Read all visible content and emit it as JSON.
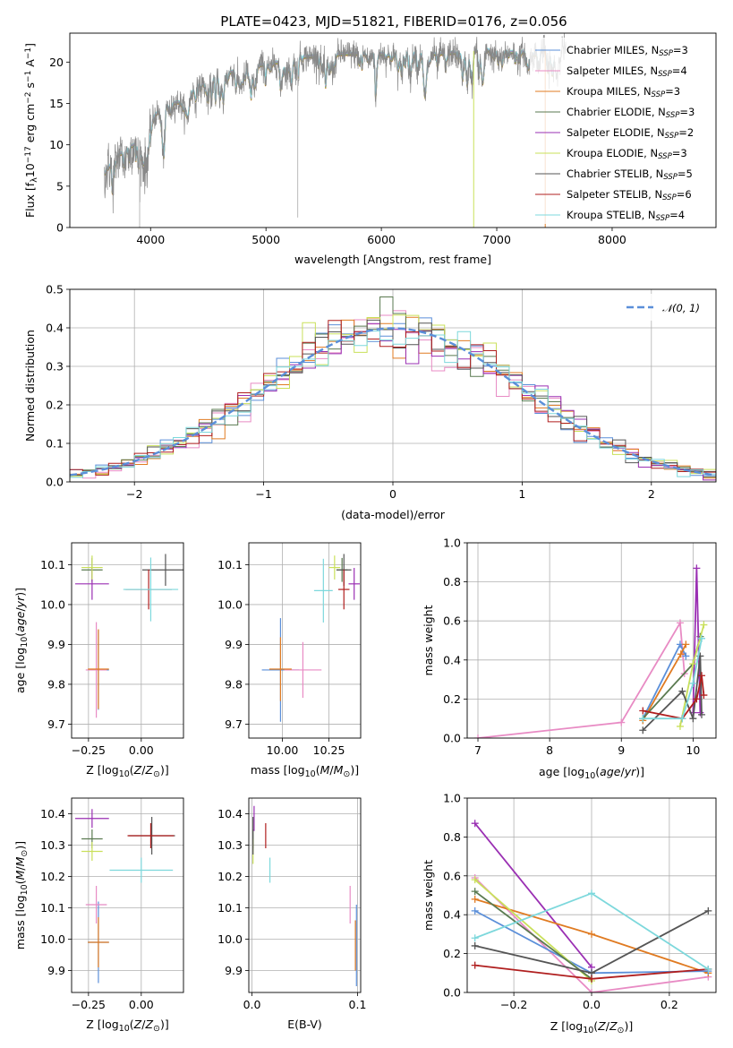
{
  "colors": {
    "chabrier_miles": "#5b8fd9",
    "salpeter_miles": "#e88bc4",
    "kroupa_miles": "#e07b22",
    "chabrier_elodie": "#5a7a50",
    "salpeter_elodie": "#9a2fb3",
    "kroupa_elodie": "#c9e05a",
    "chabrier_stelib": "#555555",
    "salpeter_stelib": "#b01f1f",
    "kroupa_stelib": "#7dd8dc",
    "data": "#888888"
  },
  "chart_data": [
    {
      "id": "spectrum",
      "type": "line",
      "title": "PLATE=0423, MJD=51821, FIBERID=0176, z=0.056",
      "xlabel": "wavelength [Angstrom, rest frame]",
      "ylabel": "Flux [f_λ10^-17 erg cm^-2 s^-1 A^-1]",
      "ylabel_parts": [
        "Flux [f",
        "λ",
        "10",
        "−17",
        " erg cm",
        "−2",
        " s",
        "−1",
        " A",
        "−1",
        "]"
      ],
      "xlim": [
        3300,
        8900
      ],
      "ylim": [
        0,
        23.5
      ],
      "xticks": [
        4000,
        5000,
        6000,
        7000,
        8000
      ],
      "yticks": [
        0,
        5,
        10,
        15,
        20
      ],
      "legend_position": "upper-right",
      "legend": [
        {
          "label": "Chabrier MILES, N",
          "sub": "SSP",
          "tail": "=3",
          "color": "#5b8fd9"
        },
        {
          "label": "Salpeter MILES, N",
          "sub": "SSP",
          "tail": "=4",
          "color": "#e88bc4"
        },
        {
          "label": "Kroupa MILES, N",
          "sub": "SSP",
          "tail": "=3",
          "color": "#e07b22"
        },
        {
          "label": "Chabrier ELODIE, N",
          "sub": "SSP",
          "tail": "=3",
          "color": "#5a7a50"
        },
        {
          "label": "Salpeter ELODIE, N",
          "sub": "SSP",
          "tail": "=2",
          "color": "#9a2fb3"
        },
        {
          "label": "Kroupa ELODIE, N",
          "sub": "SSP",
          "tail": "=3",
          "color": "#c9e05a"
        },
        {
          "label": "Chabrier STELIB, N",
          "sub": "SSP",
          "tail": "=5",
          "color": "#555555"
        },
        {
          "label": "Salpeter STELIB, N",
          "sub": "SSP",
          "tail": "=6",
          "color": "#b01f1f"
        },
        {
          "label": "Kroupa STELIB, N",
          "sub": "SSP",
          "tail": "=4",
          "color": "#7dd8dc"
        }
      ],
      "continuum_x": [
        3600,
        3700,
        3800,
        3900,
        4000,
        4100,
        4200,
        4300,
        4400,
        4500,
        4700,
        4900,
        5100,
        5300,
        5500,
        5700,
        5900,
        6100,
        6300,
        6500,
        6700,
        6900,
        7100,
        7300,
        7500
      ],
      "continuum_y": [
        6.5,
        8.5,
        9.5,
        10.5,
        13.0,
        14.5,
        15.0,
        15.5,
        17.0,
        17.8,
        18.8,
        19.5,
        20.0,
        20.6,
        20.8,
        21.0,
        21.0,
        21.0,
        21.1,
        21.0,
        21.2,
        21.5,
        21.2,
        21.3,
        21.6
      ],
      "dips": [
        {
          "x": 3905,
          "y": 0
        },
        {
          "x": 5275,
          "y": 1.2
        },
        {
          "x": 6800,
          "y": 0
        },
        {
          "x": 7420,
          "y": 0
        }
      ]
    },
    {
      "id": "residual-histogram",
      "type": "histogram",
      "xlabel": "(data-model)/error",
      "ylabel": "Normed distribution",
      "xlim": [
        -2.5,
        2.5
      ],
      "ylim": [
        0,
        0.5
      ],
      "xticks": [
        -2,
        -1,
        0,
        1,
        2
      ],
      "yticks": [
        0.0,
        0.1,
        0.2,
        0.3,
        0.4,
        0.5
      ],
      "bin_width": 0.1,
      "legend": [
        {
          "label": "𝒩(0, 1)",
          "color": "#5b8fd9",
          "style": "dashed"
        }
      ],
      "legend_position": "upper-right"
    },
    {
      "id": "age-vs-Z",
      "type": "errorbar",
      "xlabel": "Z [log10(Z/Z⊙)]",
      "ylabel": "age  [log10(age/yr)]",
      "xlim": [
        -0.33,
        0.2
      ],
      "ylim": [
        9.665,
        10.155
      ],
      "xticks": [
        -0.25,
        0.0
      ],
      "yticks": [
        9.7,
        9.8,
        9.9,
        10.0,
        10.1
      ],
      "points": [
        {
          "x": -0.203,
          "y": 9.836,
          "xerr": 0.05,
          "yerr": 0.1,
          "color": "#5b8fd9"
        },
        {
          "x": -0.213,
          "y": 9.836,
          "xerr": 0.05,
          "yerr": 0.12,
          "color": "#e88bc4"
        },
        {
          "x": -0.203,
          "y": 9.838,
          "xerr": 0.05,
          "yerr": 0.1,
          "color": "#e07b22"
        },
        {
          "x": -0.233,
          "y": 10.087,
          "xerr": 0.05,
          "yerr": 0.03,
          "color": "#5a7a50"
        },
        {
          "x": -0.233,
          "y": 10.052,
          "xerr": 0.08,
          "yerr": 0.04,
          "color": "#9a2fb3"
        },
        {
          "x": -0.233,
          "y": 10.093,
          "xerr": 0.05,
          "yerr": 0.03,
          "color": "#c9e05a"
        },
        {
          "x": 0.115,
          "y": 10.087,
          "xerr": 0.11,
          "yerr": 0.04,
          "color": "#555555"
        },
        {
          "x": 0.035,
          "y": 10.038,
          "xerr": 0.11,
          "yerr": 0.05,
          "color": "#b01f1f"
        },
        {
          "x": 0.045,
          "y": 10.038,
          "xerr": 0.13,
          "yerr": 0.08,
          "color": "#7dd8dc"
        }
      ]
    },
    {
      "id": "age-vs-mass",
      "type": "errorbar",
      "xlabel": "mass [log10(M/M⊙)]",
      "xlim": [
        9.82,
        10.42
      ],
      "ylim": [
        9.665,
        10.155
      ],
      "xticks": [
        10.0,
        10.25
      ],
      "yticks": [
        9.7,
        9.8,
        9.9,
        10.0,
        10.1
      ],
      "points": [
        {
          "x": 9.99,
          "y": 9.836,
          "xerr": 0.1,
          "yerr": 0.13,
          "color": "#5b8fd9"
        },
        {
          "x": 10.11,
          "y": 9.836,
          "xerr": 0.1,
          "yerr": 0.07,
          "color": "#e88bc4"
        },
        {
          "x": 9.99,
          "y": 9.838,
          "xerr": 0.06,
          "yerr": 0.08,
          "color": "#e07b22"
        },
        {
          "x": 10.32,
          "y": 10.087,
          "xerr": 0.03,
          "yerr": 0.03,
          "color": "#5a7a50"
        },
        {
          "x": 10.385,
          "y": 10.052,
          "xerr": 0.03,
          "yerr": 0.04,
          "color": "#9a2fb3"
        },
        {
          "x": 10.28,
          "y": 10.093,
          "xerr": 0.03,
          "yerr": 0.03,
          "color": "#c9e05a"
        },
        {
          "x": 10.33,
          "y": 10.087,
          "xerr": 0.04,
          "yerr": 0.04,
          "color": "#555555"
        },
        {
          "x": 10.33,
          "y": 10.038,
          "xerr": 0.03,
          "yerr": 0.05,
          "color": "#b01f1f"
        },
        {
          "x": 10.22,
          "y": 10.035,
          "xerr": 0.05,
          "yerr": 0.08,
          "color": "#7dd8dc"
        }
      ]
    },
    {
      "id": "mass-weight-vs-age",
      "type": "line",
      "xlabel": "age  [log10(age/yr)]",
      "ylabel": "mass weight",
      "xlim": [
        6.85,
        10.32
      ],
      "ylim": [
        0,
        1
      ],
      "xticks": [
        7,
        8,
        9,
        10
      ],
      "yticks": [
        0.0,
        0.2,
        0.4,
        0.6,
        0.8,
        1.0
      ],
      "series": [
        {
          "color": "#e88bc4",
          "x": [
            7.0,
            9.0,
            9.82,
            9.88
          ],
          "y": [
            0.0,
            0.08,
            0.59,
            0.33
          ]
        },
        {
          "color": "#5b8fd9",
          "x": [
            9.3,
            9.82,
            9.9
          ],
          "y": [
            0.1,
            0.48,
            0.42
          ]
        },
        {
          "color": "#e07b22",
          "x": [
            9.3,
            9.83,
            9.9
          ],
          "y": [
            0.09,
            0.43,
            0.48
          ]
        },
        {
          "color": "#5a7a50",
          "x": [
            9.3,
            10.0,
            10.1
          ],
          "y": [
            0.1,
            0.38,
            0.52
          ]
        },
        {
          "color": "#9a2fb3",
          "x": [
            10.0,
            10.05,
            10.1
          ],
          "y": [
            0.13,
            0.87,
            0.13
          ]
        },
        {
          "color": "#c9e05a",
          "x": [
            9.82,
            10.0,
            10.15
          ],
          "y": [
            0.06,
            0.38,
            0.58
          ]
        },
        {
          "color": "#555555",
          "x": [
            9.3,
            9.85,
            10.0,
            10.1,
            10.12
          ],
          "y": [
            0.04,
            0.24,
            0.1,
            0.42,
            0.12
          ]
        },
        {
          "color": "#b01f1f",
          "x": [
            9.3,
            9.85,
            10.05,
            10.12,
            10.15
          ],
          "y": [
            0.14,
            0.1,
            0.2,
            0.32,
            0.22
          ]
        },
        {
          "color": "#7dd8dc",
          "x": [
            9.3,
            9.85,
            10.0,
            10.12
          ],
          "y": [
            0.1,
            0.1,
            0.28,
            0.51
          ]
        }
      ]
    },
    {
      "id": "mass-vs-Z",
      "type": "errorbar",
      "xlabel": "Z [log10(Z/Z⊙)]",
      "ylabel": "mass [log10(M/M⊙)]",
      "xlim": [
        -0.33,
        0.2
      ],
      "ylim": [
        9.83,
        10.45
      ],
      "xticks": [
        -0.25,
        0.0
      ],
      "yticks": [
        9.9,
        10.0,
        10.1,
        10.2,
        10.3,
        10.4
      ],
      "points": [
        {
          "x": -0.203,
          "y": 9.99,
          "xerr": 0.05,
          "yerr": 0.13,
          "color": "#5b8fd9"
        },
        {
          "x": -0.213,
          "y": 10.11,
          "xerr": 0.05,
          "yerr": 0.06,
          "color": "#e88bc4"
        },
        {
          "x": -0.203,
          "y": 9.99,
          "xerr": 0.05,
          "yerr": 0.08,
          "color": "#e07b22"
        },
        {
          "x": -0.233,
          "y": 10.32,
          "xerr": 0.05,
          "yerr": 0.03,
          "color": "#5a7a50"
        },
        {
          "x": -0.233,
          "y": 10.385,
          "xerr": 0.08,
          "yerr": 0.03,
          "color": "#9a2fb3"
        },
        {
          "x": -0.233,
          "y": 10.28,
          "xerr": 0.05,
          "yerr": 0.03,
          "color": "#c9e05a"
        },
        {
          "x": 0.05,
          "y": 10.33,
          "xerr": 0.11,
          "yerr": 0.06,
          "color": "#555555"
        },
        {
          "x": 0.045,
          "y": 10.33,
          "xerr": 0.11,
          "yerr": 0.04,
          "color": "#b01f1f"
        },
        {
          "x": 0.0,
          "y": 10.22,
          "xerr": 0.15,
          "yerr": 0.04,
          "color": "#7dd8dc"
        }
      ]
    },
    {
      "id": "mass-vs-ebv",
      "type": "errorbar",
      "xlabel": "E(B-V)",
      "xlim": [
        -0.003,
        0.103
      ],
      "ylim": [
        9.83,
        10.45
      ],
      "xticks": [
        0.0,
        0.1
      ],
      "yticks": [
        9.9,
        10.0,
        10.1,
        10.2,
        10.3,
        10.4
      ],
      "points": [
        {
          "x": 0.099,
          "y": 9.98,
          "xerr": 0,
          "yerr": 0.13,
          "color": "#5b8fd9"
        },
        {
          "x": 0.093,
          "y": 10.11,
          "xerr": 0,
          "yerr": 0.06,
          "color": "#e88bc4"
        },
        {
          "x": 0.098,
          "y": 9.98,
          "xerr": 0,
          "yerr": 0.08,
          "color": "#e07b22"
        },
        {
          "x": 0.001,
          "y": 10.32,
          "xerr": 0,
          "yerr": 0.03,
          "color": "#5a7a50"
        },
        {
          "x": 0.002,
          "y": 10.385,
          "xerr": 0,
          "yerr": 0.04,
          "color": "#9a2fb3"
        },
        {
          "x": 0.001,
          "y": 10.28,
          "xerr": 0,
          "yerr": 0.04,
          "color": "#c9e05a"
        },
        {
          "x": 0.001,
          "y": 10.33,
          "xerr": 0,
          "yerr": 0.06,
          "color": "#555555"
        },
        {
          "x": 0.013,
          "y": 10.33,
          "xerr": 0,
          "yerr": 0.04,
          "color": "#b01f1f"
        },
        {
          "x": 0.017,
          "y": 10.22,
          "xerr": 0,
          "yerr": 0.04,
          "color": "#7dd8dc"
        }
      ]
    },
    {
      "id": "mass-weight-vs-Z",
      "type": "line",
      "xlabel": "Z [log10(Z/Z⊙)]",
      "ylabel": "mass weight",
      "xlim": [
        -0.32,
        0.32
      ],
      "ylim": [
        0,
        1
      ],
      "xticks": [
        -0.2,
        0.0,
        0.2
      ],
      "yticks": [
        0.0,
        0.2,
        0.4,
        0.6,
        0.8,
        1.0
      ],
      "series": [
        {
          "color": "#9a2fb3",
          "x": [
            -0.3,
            0.0
          ],
          "y": [
            0.87,
            0.13
          ]
        },
        {
          "color": "#e88bc4",
          "x": [
            -0.3,
            0.0,
            0.3
          ],
          "y": [
            0.59,
            0.0,
            0.08
          ]
        },
        {
          "color": "#e07b22",
          "x": [
            -0.3,
            0.0,
            0.3
          ],
          "y": [
            0.48,
            0.3,
            0.1
          ]
        },
        {
          "color": "#5b8fd9",
          "x": [
            -0.3,
            0.0,
            0.3
          ],
          "y": [
            0.42,
            0.1,
            0.11
          ]
        },
        {
          "color": "#c9e05a",
          "x": [
            -0.3,
            0.0
          ],
          "y": [
            0.58,
            0.06
          ]
        },
        {
          "color": "#5a7a50",
          "x": [
            -0.3,
            0.0
          ],
          "y": [
            0.52,
            0.07
          ]
        },
        {
          "color": "#555555",
          "x": [
            -0.3,
            0.0,
            0.3
          ],
          "y": [
            0.24,
            0.1,
            0.42
          ]
        },
        {
          "color": "#b01f1f",
          "x": [
            -0.3,
            0.0,
            0.3
          ],
          "y": [
            0.14,
            0.07,
            0.12
          ]
        },
        {
          "color": "#7dd8dc",
          "x": [
            -0.3,
            0.0,
            0.3
          ],
          "y": [
            0.28,
            0.51,
            0.12
          ]
        }
      ]
    }
  ]
}
